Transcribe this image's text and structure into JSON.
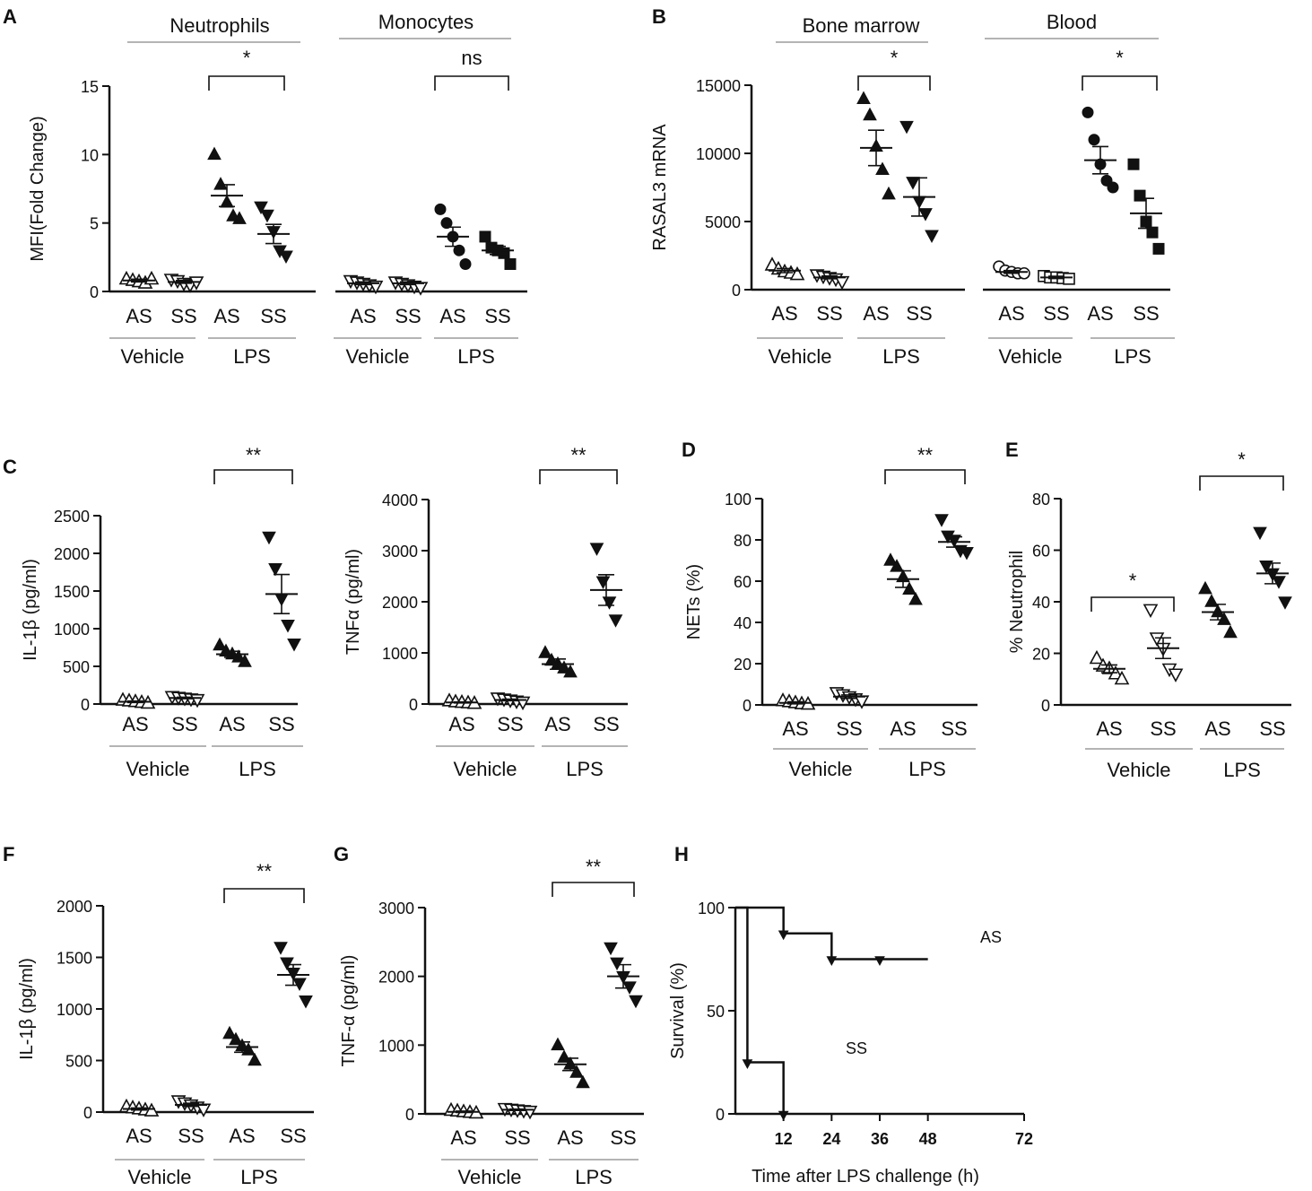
{
  "figure": {
    "background": "#ffffff",
    "ink": "#111111",
    "gray": "#888888"
  },
  "chart_data": [
    {
      "id": "A",
      "panel": "A",
      "type": "scatter",
      "ylabel": "MFI(Fold Change)",
      "ylim": [
        0,
        15
      ],
      "yticks": [
        0,
        5,
        10,
        15
      ],
      "headers": [
        "Neutrophils",
        "Monocytes"
      ],
      "groups": [
        {
          "name": "Neutrophils / Vehicle / AS",
          "category": "AS",
          "marker": "tri-up-open",
          "mean": 0.8,
          "sem": 0.1,
          "values": [
            0.9,
            0.8,
            0.7,
            0.6,
            0.9
          ]
        },
        {
          "name": "Neutrophils / Vehicle / SS",
          "category": "SS",
          "marker": "tri-down-open",
          "mean": 0.7,
          "sem": 0.1,
          "values": [
            0.9,
            0.8,
            0.6,
            0.5,
            0.7
          ]
        },
        {
          "name": "Neutrophils / LPS / AS",
          "category": "AS",
          "marker": "tri-up",
          "mean": 7.0,
          "sem": 0.8,
          "values": [
            10.0,
            7.8,
            6.5,
            5.5,
            5.3
          ]
        },
        {
          "name": "Neutrophils / LPS / SS",
          "category": "SS",
          "marker": "tri-down",
          "mean": 4.2,
          "sem": 0.7,
          "values": [
            6.2,
            5.6,
            4.4,
            3.0,
            2.6
          ]
        },
        {
          "name": "Monocytes / Vehicle / AS",
          "category": "AS",
          "marker": "tri-down-open",
          "mean": 0.6,
          "sem": 0.1,
          "values": [
            0.8,
            0.7,
            0.6,
            0.5,
            0.4
          ]
        },
        {
          "name": "Monocytes / Vehicle / SS",
          "category": "SS",
          "marker": "tri-down-open",
          "mean": 0.6,
          "sem": 0.1,
          "values": [
            0.7,
            0.6,
            0.5,
            0.4,
            0.3
          ]
        },
        {
          "name": "Monocytes / LPS / AS",
          "category": "AS",
          "marker": "circle",
          "mean": 4.0,
          "sem": 0.7,
          "values": [
            6.0,
            5.0,
            4.0,
            3.0,
            2.0
          ]
        },
        {
          "name": "Monocytes / LPS / SS",
          "category": "SS",
          "marker": "square",
          "mean": 3.0,
          "sem": 0.3,
          "values": [
            4.0,
            3.2,
            3.0,
            2.8,
            2.0
          ]
        }
      ],
      "group_labels": [
        "Vehicle",
        "LPS",
        "Vehicle",
        "LPS"
      ],
      "significance": [
        {
          "between": [
            "Neutrophils / LPS / AS",
            "Neutrophils / LPS / SS"
          ],
          "label": "*"
        },
        {
          "between": [
            "Monocytes / LPS / AS",
            "Monocytes / LPS / SS"
          ],
          "label": "ns"
        }
      ]
    },
    {
      "id": "B",
      "panel": "B",
      "type": "scatter",
      "ylabel": "RASAL3 mRNA",
      "ylim": [
        0,
        15000
      ],
      "yticks": [
        0,
        5000,
        10000,
        15000
      ],
      "headers": [
        "Bone marrow",
        "Blood"
      ],
      "groups": [
        {
          "name": "Bone marrow / Vehicle / AS",
          "category": "AS",
          "marker": "tri-up-open",
          "mean": 1400,
          "sem": 150,
          "values": [
            1800,
            1500,
            1300,
            1200,
            1100
          ]
        },
        {
          "name": "Bone marrow / Vehicle / SS",
          "category": "SS",
          "marker": "tri-down-open",
          "mean": 900,
          "sem": 100,
          "values": [
            1100,
            1000,
            900,
            800,
            600
          ]
        },
        {
          "name": "Bone marrow / LPS / AS",
          "category": "AS",
          "marker": "tri-up",
          "mean": 10400,
          "sem": 1300,
          "values": [
            14000,
            12800,
            10500,
            8800,
            7000
          ]
        },
        {
          "name": "Bone marrow / LPS / SS",
          "category": "SS",
          "marker": "tri-down",
          "mean": 6800,
          "sem": 1400,
          "values": [
            12000,
            7900,
            6500,
            5600,
            4000
          ]
        },
        {
          "name": "Blood / Vehicle / AS",
          "category": "AS",
          "marker": "circle-open",
          "mean": 1300,
          "sem": 100,
          "values": [
            1700,
            1400,
            1300,
            1200,
            1200
          ]
        },
        {
          "name": "Blood / Vehicle / SS",
          "category": "SS",
          "marker": "square-open",
          "mean": 900,
          "sem": 80,
          "values": [
            1000,
            900,
            900,
            850,
            800
          ]
        },
        {
          "name": "Blood / LPS / AS",
          "category": "AS",
          "marker": "circle",
          "mean": 9500,
          "sem": 1000,
          "values": [
            13000,
            11000,
            9200,
            8000,
            7500
          ]
        },
        {
          "name": "Blood / LPS / SS",
          "category": "SS",
          "marker": "square",
          "mean": 5600,
          "sem": 1100,
          "values": [
            9200,
            6900,
            5000,
            4200,
            3000
          ]
        }
      ],
      "group_labels": [
        "Vehicle",
        "LPS",
        "Vehicle",
        "LPS"
      ],
      "significance": [
        {
          "between": [
            "Bone marrow / LPS / AS",
            "Bone marrow / LPS / SS"
          ],
          "label": "*"
        },
        {
          "between": [
            "Blood / LPS / AS",
            "Blood / LPS / SS"
          ],
          "label": "*"
        }
      ]
    },
    {
      "id": "C1",
      "panel": "C",
      "type": "scatter",
      "ylabel": "IL-1β (pg/ml)",
      "ylim": [
        0,
        2500
      ],
      "yticks": [
        0,
        500,
        1000,
        1500,
        2000,
        2500
      ],
      "groups": [
        {
          "name": "Vehicle / AS",
          "category": "AS",
          "marker": "tri-up-open",
          "mean": 30,
          "sem": 10,
          "values": [
            50,
            40,
            30,
            20,
            10
          ]
        },
        {
          "name": "Vehicle / SS",
          "category": "SS",
          "marker": "tri-down-open",
          "mean": 80,
          "sem": 10,
          "values": [
            100,
            90,
            80,
            70,
            60
          ]
        },
        {
          "name": "LPS / AS",
          "category": "AS",
          "marker": "tri-up",
          "mean": 660,
          "sem": 40,
          "values": [
            780,
            700,
            660,
            620,
            560
          ]
        },
        {
          "name": "LPS / SS",
          "category": "SS",
          "marker": "tri-down",
          "mean": 1460,
          "sem": 260,
          "values": [
            2220,
            1800,
            1400,
            1050,
            800
          ]
        }
      ],
      "group_labels": [
        "Vehicle",
        "LPS"
      ],
      "significance": [
        {
          "between": [
            "LPS / AS",
            "LPS / SS"
          ],
          "label": "**"
        }
      ]
    },
    {
      "id": "C2",
      "panel": "",
      "type": "scatter",
      "ylabel": "TNFα (pg/ml)",
      "ylim": [
        0,
        4000
      ],
      "yticks": [
        0,
        1000,
        2000,
        3000,
        4000
      ],
      "groups": [
        {
          "name": "Vehicle / AS",
          "category": "AS",
          "marker": "tri-up-open",
          "mean": 30,
          "sem": 10,
          "values": [
            60,
            40,
            30,
            20,
            10
          ]
        },
        {
          "name": "Vehicle / SS",
          "category": "SS",
          "marker": "tri-down-open",
          "mean": 80,
          "sem": 15,
          "values": [
            120,
            100,
            80,
            60,
            40
          ]
        },
        {
          "name": "LPS / AS",
          "category": "AS",
          "marker": "tri-up",
          "mean": 780,
          "sem": 100,
          "values": [
            1000,
            850,
            780,
            700,
            620
          ]
        },
        {
          "name": "LPS / SS",
          "category": "SS",
          "marker": "tri-down",
          "mean": 2230,
          "sem": 300,
          "values": [
            3050,
            2400,
            2000,
            1650
          ]
        }
      ],
      "group_labels": [
        "Vehicle",
        "LPS"
      ],
      "significance": [
        {
          "between": [
            "LPS / AS",
            "LPS / SS"
          ],
          "label": "**"
        }
      ]
    },
    {
      "id": "D",
      "panel": "D",
      "type": "scatter",
      "ylabel": "NETs (%)",
      "ylim": [
        0,
        100
      ],
      "yticks": [
        0,
        20,
        40,
        60,
        80,
        100
      ],
      "groups": [
        {
          "name": "Vehicle / AS",
          "category": "AS",
          "marker": "tri-up-open",
          "mean": 1,
          "sem": 0.5,
          "values": [
            2,
            1.5,
            1,
            0.5,
            0.3
          ]
        },
        {
          "name": "Vehicle / SS",
          "category": "SS",
          "marker": "tri-down-open",
          "mean": 4,
          "sem": 0.8,
          "values": [
            6,
            5,
            4,
            3,
            2
          ]
        },
        {
          "name": "LPS / AS",
          "category": "AS",
          "marker": "tri-up",
          "mean": 61,
          "sem": 4,
          "values": [
            70,
            67,
            62,
            56,
            51
          ]
        },
        {
          "name": "LPS / SS",
          "category": "SS",
          "marker": "tri-down",
          "mean": 79,
          "sem": 2.5,
          "values": [
            90,
            82,
            80,
            75,
            74
          ]
        }
      ],
      "group_labels": [
        "Vehicle",
        "LPS"
      ],
      "significance": [
        {
          "between": [
            "LPS / AS",
            "LPS / SS"
          ],
          "label": "**"
        }
      ]
    },
    {
      "id": "E",
      "panel": "E",
      "type": "scatter",
      "ylabel": "% Neutrophil",
      "ylim": [
        0,
        80
      ],
      "yticks": [
        0,
        20,
        40,
        60,
        80
      ],
      "groups": [
        {
          "name": "Vehicle / AS",
          "category": "AS",
          "marker": "tri-up-open",
          "mean": 14,
          "sem": 1.5,
          "values": [
            18,
            15,
            14,
            12,
            10
          ]
        },
        {
          "name": "Vehicle / SS",
          "category": "SS",
          "marker": "tri-down-open",
          "mean": 22,
          "sem": 4,
          "values": [
            37,
            26,
            22,
            14,
            12
          ]
        },
        {
          "name": "LPS / AS",
          "category": "AS",
          "marker": "tri-up",
          "mean": 36,
          "sem": 3,
          "values": [
            45,
            40,
            36,
            33,
            28
          ]
        },
        {
          "name": "LPS / SS",
          "category": "SS",
          "marker": "tri-down",
          "mean": 51,
          "sem": 4,
          "values": [
            67,
            54,
            51,
            48,
            40
          ]
        }
      ],
      "group_labels": [
        "Vehicle",
        "LPS"
      ],
      "significance": [
        {
          "between": [
            "Vehicle / AS",
            "Vehicle / SS"
          ],
          "label": "*"
        },
        {
          "between": [
            "LPS / AS",
            "LPS / SS"
          ],
          "label": "*"
        }
      ]
    },
    {
      "id": "F",
      "panel": "F",
      "type": "scatter",
      "ylabel": "IL-1β (pg/ml)",
      "ylim": [
        0,
        2000
      ],
      "yticks": [
        0,
        500,
        1000,
        1500,
        2000
      ],
      "groups": [
        {
          "name": "Vehicle / AS",
          "category": "AS",
          "marker": "tri-up-open",
          "mean": 30,
          "sem": 10,
          "values": [
            50,
            40,
            30,
            20,
            10
          ]
        },
        {
          "name": "Vehicle / SS",
          "category": "SS",
          "marker": "tri-down-open",
          "mean": 70,
          "sem": 15,
          "values": [
            110,
            90,
            70,
            50,
            30
          ]
        },
        {
          "name": "LPS / AS",
          "category": "AS",
          "marker": "tri-up",
          "mean": 630,
          "sem": 50,
          "values": [
            760,
            700,
            640,
            600,
            500
          ]
        },
        {
          "name": "LPS / SS",
          "category": "SS",
          "marker": "tri-down",
          "mean": 1330,
          "sem": 100,
          "values": [
            1600,
            1450,
            1350,
            1250,
            1080
          ]
        }
      ],
      "group_labels": [
        "Vehicle",
        "LPS"
      ],
      "significance": [
        {
          "between": [
            "LPS / AS",
            "LPS / SS"
          ],
          "label": "**"
        }
      ]
    },
    {
      "id": "G",
      "panel": "G",
      "type": "scatter",
      "ylabel": "TNF-α (pg/ml)",
      "ylim": [
        0,
        3000
      ],
      "yticks": [
        0,
        1000,
        2000,
        3000
      ],
      "groups": [
        {
          "name": "Vehicle / AS",
          "category": "AS",
          "marker": "tri-up-open",
          "mean": 30,
          "sem": 10,
          "values": [
            50,
            40,
            30,
            20,
            10
          ]
        },
        {
          "name": "Vehicle / SS",
          "category": "SS",
          "marker": "tri-down-open",
          "mean": 60,
          "sem": 10,
          "values": [
            80,
            70,
            60,
            50,
            40
          ]
        },
        {
          "name": "LPS / AS",
          "category": "AS",
          "marker": "tri-up",
          "mean": 720,
          "sem": 90,
          "values": [
            1000,
            820,
            720,
            600,
            450
          ]
        },
        {
          "name": "LPS / SS",
          "category": "SS",
          "marker": "tri-down",
          "mean": 2000,
          "sem": 170,
          "values": [
            2420,
            2200,
            2000,
            1850,
            1650
          ]
        }
      ],
      "group_labels": [
        "Vehicle",
        "LPS"
      ],
      "significance": [
        {
          "between": [
            "LPS / AS",
            "LPS / SS"
          ],
          "label": "**"
        }
      ]
    },
    {
      "id": "H",
      "panel": "H",
      "type": "line",
      "subtype": "kaplan-meier",
      "xlabel": "Time after LPS challenge (h)",
      "ylabel": "Survival (%)",
      "xlim": [
        0,
        72
      ],
      "ylim": [
        0,
        100
      ],
      "xticks": [
        12,
        24,
        36,
        48,
        72
      ],
      "yticks": [
        0,
        50,
        100
      ],
      "series": [
        {
          "name": "AS",
          "x": [
            0,
            12,
            24,
            48
          ],
          "y": [
            100,
            87.5,
            75,
            75
          ],
          "censor_markers": [
            {
              "x": 12,
              "y": 87.5
            },
            {
              "x": 24,
              "y": 75
            },
            {
              "x": 36,
              "y": 75
            }
          ]
        },
        {
          "name": "SS",
          "x": [
            0,
            3,
            12
          ],
          "y": [
            100,
            25,
            0
          ],
          "censor_markers": [
            {
              "x": 3,
              "y": 25
            },
            {
              "x": 12,
              "y": 0
            }
          ]
        }
      ]
    }
  ]
}
